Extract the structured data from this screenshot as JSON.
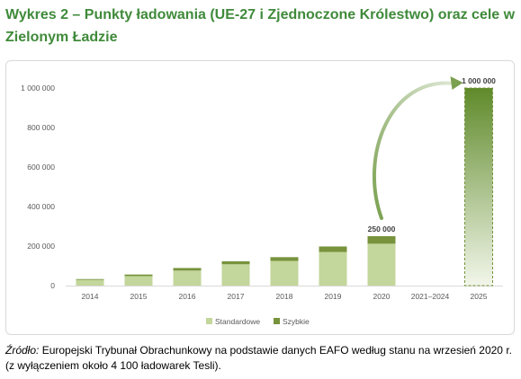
{
  "title": "Wykres 2 – Punkty ładowania (UE-27 i Zjednoczone Królestwo) oraz cele w Zielonym Ładzie",
  "source": {
    "prefix": "Źródło:",
    "text": " Europejski Trybunał Obrachunkowy na podstawie danych EAFO według stanu na wrzesień 2020 r. (z wyłączeniem około 4 100 ładowarek Tesli)."
  },
  "colors": {
    "standard": "#c3d69b",
    "fast": "#77933c",
    "target_top": "#5f8a2a",
    "target_bottom": "#f2f6ea",
    "target_border": "#77933c",
    "arrow": "#7aa050",
    "axis_text": "#595959",
    "label_text": "#404040"
  },
  "chart_data": {
    "type": "bar",
    "stacked": true,
    "categories": [
      "2014",
      "2015",
      "2016",
      "2017",
      "2018",
      "2019",
      "2020",
      "2021–2024",
      "2025"
    ],
    "series": [
      {
        "name": "Standardowe",
        "values": [
          29000,
          48000,
          76000,
          108000,
          125000,
          170000,
          212000,
          null,
          null
        ]
      },
      {
        "name": "Szybkie",
        "values": [
          4000,
          8000,
          13000,
          15000,
          19000,
          28000,
          38000,
          null,
          null
        ]
      }
    ],
    "target": {
      "category": "2025",
      "value": 1000000
    },
    "data_labels": [
      {
        "category": "2020",
        "text": "250 000",
        "value": 250000
      },
      {
        "category": "2025",
        "text": "1 000 000",
        "value": 1000000
      }
    ],
    "ylim": [
      0,
      1000000
    ],
    "yticks": [
      0,
      200000,
      400000,
      600000,
      800000,
      1000000
    ],
    "ytick_labels": [
      "0",
      "200 000",
      "400 000",
      "600 000",
      "800 000",
      "1 000 000"
    ],
    "grid": false,
    "legend_position": "bottom",
    "xlabel": "",
    "ylabel": ""
  }
}
